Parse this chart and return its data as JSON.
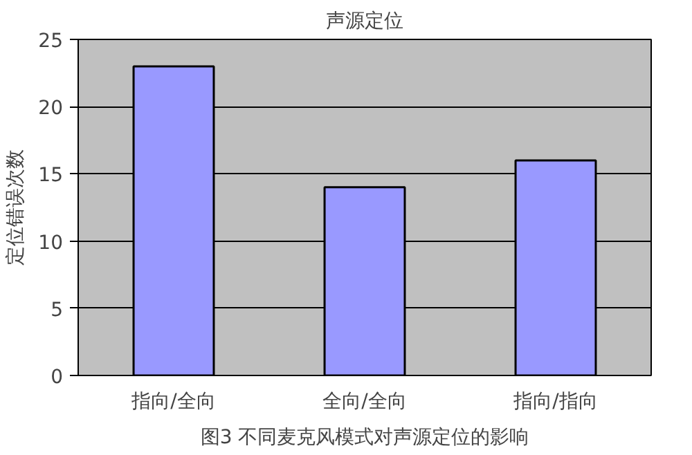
{
  "chart_data": {
    "type": "bar",
    "title": "声源定位",
    "ylabel": "定位错误次数",
    "categories": [
      "指向/全向",
      "全向/全向",
      "指向/指向"
    ],
    "values": [
      23,
      14,
      16
    ],
    "color": "#9999ff",
    "ylim": [
      0,
      25
    ],
    "yticks": [
      0,
      5,
      10,
      15,
      20,
      25
    ],
    "grid": "y",
    "annotations": [
      "图3 不同麦克风模式对声源定位的影响"
    ]
  }
}
